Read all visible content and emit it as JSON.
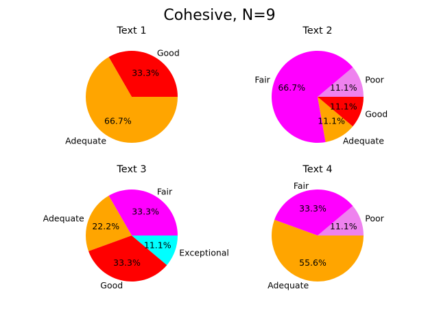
{
  "figure": {
    "title": "Cohesive, N=9"
  },
  "colors": {
    "Poor": "#ee82ee",
    "Fair": "#ff00ff",
    "Adequate": "#ffa500",
    "Good": "#ff0000",
    "Exceptional": "#00ffff"
  },
  "chart_data": [
    {
      "type": "pie",
      "title": "Text 1",
      "labels": [
        "Good",
        "Adequate"
      ],
      "values": [
        3,
        6
      ],
      "percent_labels": [
        "33.3%",
        "66.7%"
      ]
    },
    {
      "type": "pie",
      "title": "Text 2",
      "labels": [
        "Poor",
        "Fair",
        "Adequate",
        "Good"
      ],
      "values": [
        1,
        6,
        1,
        1
      ],
      "percent_labels": [
        "11.1%",
        "66.7%",
        "11.1%",
        "11.1%"
      ]
    },
    {
      "type": "pie",
      "title": "Text 3",
      "labels": [
        "Fair",
        "Adequate",
        "Good",
        "Exceptional"
      ],
      "values": [
        3,
        2,
        3,
        1
      ],
      "percent_labels": [
        "33.3%",
        "22.2%",
        "33.3%",
        "11.1%"
      ]
    },
    {
      "type": "pie",
      "title": "Text 4",
      "labels": [
        "Poor",
        "Fair",
        "Adequate"
      ],
      "values": [
        1,
        3,
        5
      ],
      "percent_labels": [
        "11.1%",
        "33.3%",
        "55.6%"
      ]
    }
  ]
}
